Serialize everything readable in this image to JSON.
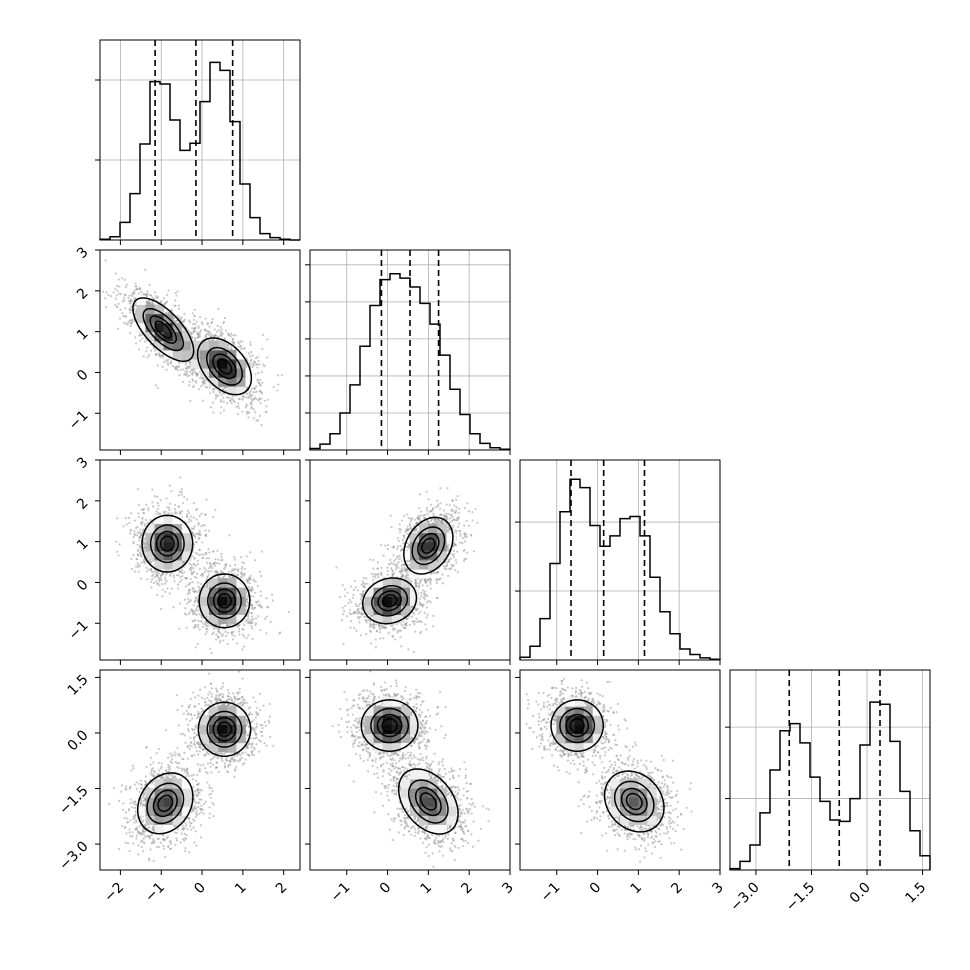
{
  "chart_data": {
    "type": "corner",
    "title": "",
    "parameters": [
      {
        "index": 0,
        "range": [
          -2.5,
          2.4
        ],
        "ticks": [
          -2,
          -1,
          0,
          1,
          2
        ],
        "tick_labels": [
          "−2",
          "−1",
          "0",
          "1",
          "2"
        ],
        "quantiles": [
          -1.15,
          -0.15,
          0.75
        ],
        "histogram": {
          "bin_edges": [
            -2.5,
            -2.255,
            -2.01,
            -1.765,
            -1.52,
            -1.275,
            -1.03,
            -0.785,
            -0.54,
            -0.295,
            -0.05,
            0.195,
            0.44,
            0.685,
            0.93,
            1.175,
            1.42,
            1.665,
            1.91,
            2.155,
            2.4
          ],
          "counts": [
            1,
            4,
            22,
            58,
            120,
            198,
            195,
            150,
            112,
            121,
            173,
            222,
            212,
            148,
            70,
            28,
            8,
            3,
            1,
            0
          ]
        },
        "hist_ymax": 250,
        "hist_gridlines": [
          100,
          200
        ]
      },
      {
        "index": 1,
        "range": [
          -1.9,
          3.0
        ],
        "ticks": [
          -1,
          0,
          1,
          2,
          3
        ],
        "tick_labels": [
          "−1",
          "0",
          "1",
          "2",
          "3"
        ],
        "quantiles": [
          -0.15,
          0.55,
          1.25
        ],
        "histogram": {
          "bin_edges": [
            -1.9,
            -1.655,
            -1.41,
            -1.165,
            -0.92,
            -0.675,
            -0.43,
            -0.185,
            0.06,
            0.305,
            0.55,
            0.795,
            1.04,
            1.285,
            1.53,
            1.775,
            2.02,
            2.265,
            2.51,
            2.755,
            3.0
          ],
          "counts": [
            2,
            8,
            22,
            50,
            88,
            140,
            195,
            230,
            238,
            232,
            220,
            198,
            170,
            128,
            82,
            48,
            22,
            9,
            3,
            1
          ]
        },
        "hist_ymax": 270,
        "hist_gridlines": [
          50,
          100,
          150,
          200,
          250
        ]
      },
      {
        "index": 2,
        "range": [
          -1.9,
          3.0
        ],
        "ticks": [
          -1,
          0,
          1,
          2,
          3
        ],
        "tick_labels": [
          "−1",
          "0",
          "1",
          "2",
          "3"
        ],
        "quantiles": [
          -0.65,
          0.15,
          1.15
        ],
        "histogram": {
          "bin_edges": [
            -1.9,
            -1.655,
            -1.41,
            -1.165,
            -0.92,
            -0.675,
            -0.43,
            -0.185,
            0.06,
            0.305,
            0.55,
            0.795,
            1.04,
            1.285,
            1.53,
            1.775,
            2.02,
            2.265,
            2.51,
            2.755,
            3.0
          ],
          "counts": [
            4,
            20,
            60,
            140,
            215,
            262,
            250,
            195,
            165,
            180,
            205,
            208,
            180,
            120,
            70,
            38,
            16,
            8,
            3,
            1
          ]
        },
        "hist_ymax": 290,
        "hist_gridlines": [
          100,
          200
        ]
      },
      {
        "index": 3,
        "range": [
          -3.7,
          1.7
        ],
        "ticks": [
          -3.0,
          -1.5,
          0.0,
          1.5
        ],
        "tick_labels": [
          "−3.0",
          "−1.5",
          "0.0",
          "1.5"
        ],
        "quantiles": [
          -2.1,
          -0.75,
          0.35
        ],
        "histogram": {
          "bin_edges": [
            -3.7,
            -3.43,
            -3.16,
            -2.89,
            -2.62,
            -2.35,
            -2.08,
            -1.81,
            -1.54,
            -1.27,
            -1.0,
            -0.73,
            -0.46,
            -0.19,
            0.08,
            0.35,
            0.62,
            0.89,
            1.16,
            1.43,
            1.7
          ],
          "counts": [
            2,
            12,
            35,
            80,
            140,
            195,
            205,
            178,
            130,
            96,
            70,
            68,
            100,
            175,
            235,
            232,
            180,
            110,
            55,
            20
          ]
        },
        "hist_ymax": 280,
        "hist_gridlines": [
          100,
          200
        ]
      }
    ],
    "scatter_panels": [
      {
        "x": 0,
        "y": 1,
        "modes": [
          {
            "mean": [
              -0.95,
              1.05
            ],
            "cov": [
              [
                0.23,
                -0.16
              ],
              [
                -0.16,
                0.25
              ]
            ],
            "weight": 0.5
          },
          {
            "mean": [
              0.55,
              0.15
            ],
            "cov": [
              [
                0.18,
                -0.08
              ],
              [
                -0.08,
                0.2
              ]
            ],
            "weight": 0.5
          }
        ]
      },
      {
        "x": 0,
        "y": 2,
        "modes": [
          {
            "mean": [
              -0.85,
              0.95
            ],
            "cov": [
              [
                0.16,
                0
              ],
              [
                0,
                0.2
              ]
            ],
            "weight": 0.5
          },
          {
            "mean": [
              0.55,
              -0.45
            ],
            "cov": [
              [
                0.16,
                0
              ],
              [
                0,
                0.18
              ]
            ],
            "weight": 0.5
          }
        ]
      },
      {
        "x": 1,
        "y": 2,
        "modes": [
          {
            "mean": [
              0.05,
              -0.45
            ],
            "cov": [
              [
                0.18,
                0.02
              ],
              [
                0.02,
                0.13
              ]
            ],
            "weight": 0.5
          },
          {
            "mean": [
              1.0,
              0.9
            ],
            "cov": [
              [
                0.15,
                0.05
              ],
              [
                0.05,
                0.2
              ]
            ],
            "weight": 0.5
          }
        ]
      },
      {
        "x": 0,
        "y": 3,
        "modes": [
          {
            "mean": [
              0.55,
              0.1
            ],
            "cov": [
              [
                0.17,
                0
              ],
              [
                0,
                0.22
              ]
            ],
            "weight": 0.5
          },
          {
            "mean": [
              -0.9,
              -1.9
            ],
            "cov": [
              [
                0.19,
                0.05
              ],
              [
                0.05,
                0.28
              ]
            ],
            "weight": 0.5
          }
        ]
      },
      {
        "x": 1,
        "y": 3,
        "modes": [
          {
            "mean": [
              0.05,
              0.2
            ],
            "cov": [
              [
                0.2,
                0
              ],
              [
                0,
                0.2
              ]
            ],
            "weight": 0.5
          },
          {
            "mean": [
              1.0,
              -1.85
            ],
            "cov": [
              [
                0.22,
                -0.1
              ],
              [
                -0.1,
                0.32
              ]
            ],
            "weight": 0.5
          }
        ]
      },
      {
        "x": 2,
        "y": 3,
        "modes": [
          {
            "mean": [
              -0.5,
              0.2
            ],
            "cov": [
              [
                0.17,
                0
              ],
              [
                0,
                0.2
              ]
            ],
            "weight": 0.5
          },
          {
            "mean": [
              0.9,
              -1.85
            ],
            "cov": [
              [
                0.22,
                -0.05
              ],
              [
                -0.05,
                0.28
              ]
            ],
            "weight": 0.5
          }
        ]
      }
    ],
    "contour_levels_sigma": [
      0.5,
      1.0,
      1.5,
      2.0
    ],
    "colors": {
      "line": "#000000",
      "points": "#9a9a9a",
      "density_max": "#000000",
      "grid": "#b0b0b0",
      "quantile_line": "#000000"
    },
    "grid": true,
    "legend": "none"
  }
}
